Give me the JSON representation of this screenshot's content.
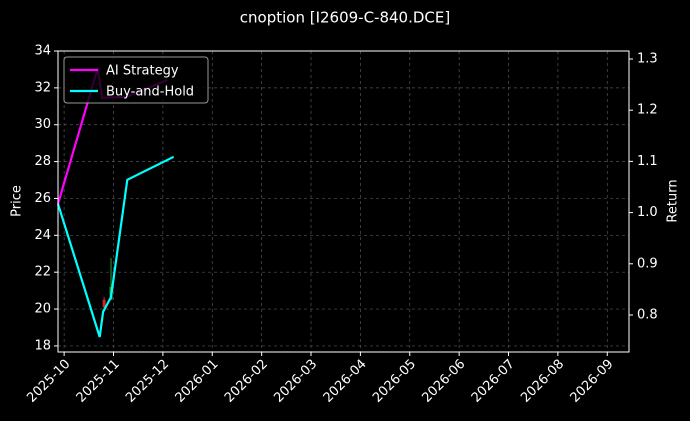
{
  "chart_data": {
    "type": "line",
    "title": "cnoption [I2609-C-840.DCE]",
    "ylabel": "Price",
    "y2label": "Return",
    "xlim": [
      -0.124,
      11.44
    ],
    "xticks": [
      {
        "value": 0,
        "label": "2025-10"
      },
      {
        "value": 1,
        "label": "2025-11"
      },
      {
        "value": 2,
        "label": "2025-12"
      },
      {
        "value": 3,
        "label": "2026-01"
      },
      {
        "value": 4,
        "label": "2026-02"
      },
      {
        "value": 5,
        "label": "2026-03"
      },
      {
        "value": 6,
        "label": "2026-04"
      },
      {
        "value": 7,
        "label": "2026-05"
      },
      {
        "value": 8,
        "label": "2026-06"
      },
      {
        "value": 9,
        "label": "2026-07"
      },
      {
        "value": 10,
        "label": "2026-08"
      },
      {
        "value": 11,
        "label": "2026-09"
      }
    ],
    "ylim": [
      17.67,
      34
    ],
    "yticks": [
      18,
      20,
      22,
      24,
      26,
      28,
      30,
      32,
      34
    ],
    "y2lim": [
      0.7277,
      1.3156
    ],
    "y2ticks": [
      0.8,
      0.9,
      {
        "value": 1,
        "label": "1.0"
      },
      1.1,
      1.2,
      1.3
    ],
    "grid": true,
    "legend": "upper left",
    "candles": {
      "x": [
        0.81,
        0.95
      ],
      "open": [
        20.5,
        20.5
      ],
      "high": [
        20.66,
        22.77
      ],
      "low": [
        19.95,
        20.5
      ],
      "close": [
        20.1,
        21.2
      ],
      "up_color": "#2ca02c",
      "down_color": "#d62728"
    },
    "series": [
      {
        "name": "AI Strategy",
        "color": "#ff00ff",
        "axis": "y2",
        "x": [
          -0.124,
          0.68,
          0.77,
          1.26,
          2.09
        ],
        "values": [
          1.017,
          1.282,
          1.224,
          1.226,
          1.259
        ]
      },
      {
        "name": "Buy-and-Hold",
        "color": "#00ffff",
        "axis": "y2",
        "x": [
          -0.124,
          0.72,
          0.79,
          0.95,
          1.28,
          2.22
        ],
        "values": [
          1.017,
          0.757,
          0.806,
          0.835,
          1.064,
          1.109
        ]
      }
    ]
  }
}
